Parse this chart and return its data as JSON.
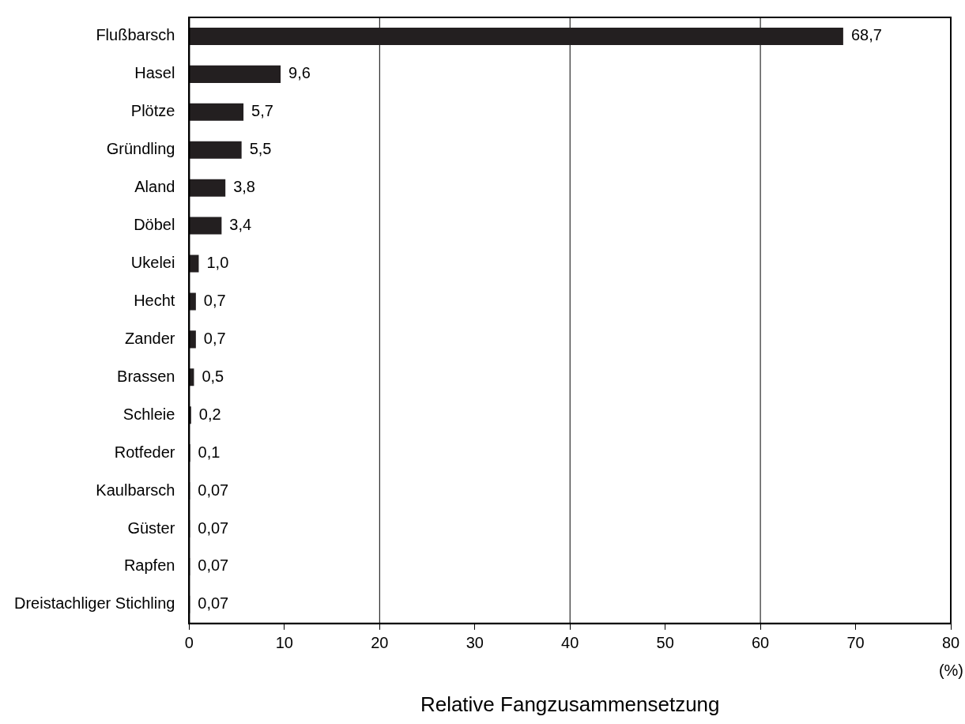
{
  "chart_data": {
    "type": "bar",
    "orientation": "horizontal",
    "xlabel": "Relative Fangzusammensetzung",
    "categories": [
      "Flußbarsch",
      "Hasel",
      "Plötze",
      "Gründling",
      "Aland",
      "Döbel",
      "Ukelei",
      "Hecht",
      "Zander",
      "Brassen",
      "Schleie",
      "Rotfeder",
      "Kaulbarsch",
      "Güster",
      "Rapfen",
      "Dreistachliger Stichling"
    ],
    "values": [
      68.7,
      9.6,
      5.7,
      5.5,
      3.8,
      3.4,
      1.0,
      0.7,
      0.7,
      0.5,
      0.2,
      0.1,
      0.07,
      0.07,
      0.07,
      0.07
    ],
    "value_labels": [
      "68,7",
      "9,6",
      "5,7",
      "5,5",
      "3,8",
      "3,4",
      "1,0",
      "0,7",
      "0,7",
      "0,5",
      "0,2",
      "0,1",
      "0,07",
      "0,07",
      "0,07",
      "0,07"
    ],
    "color": "#231f20",
    "xlim": [
      0,
      80
    ],
    "xticks": [
      0,
      10,
      20,
      30,
      40,
      50,
      60,
      70,
      80
    ],
    "ref_lines": [
      {
        "axis": "x",
        "value": 20,
        "color": "#000000"
      },
      {
        "axis": "x",
        "value": 40,
        "color": "#000000"
      },
      {
        "axis": "x",
        "value": 60,
        "color": "#000000"
      }
    ],
    "annotations": [
      "(%)"
    ],
    "legend": false
  }
}
